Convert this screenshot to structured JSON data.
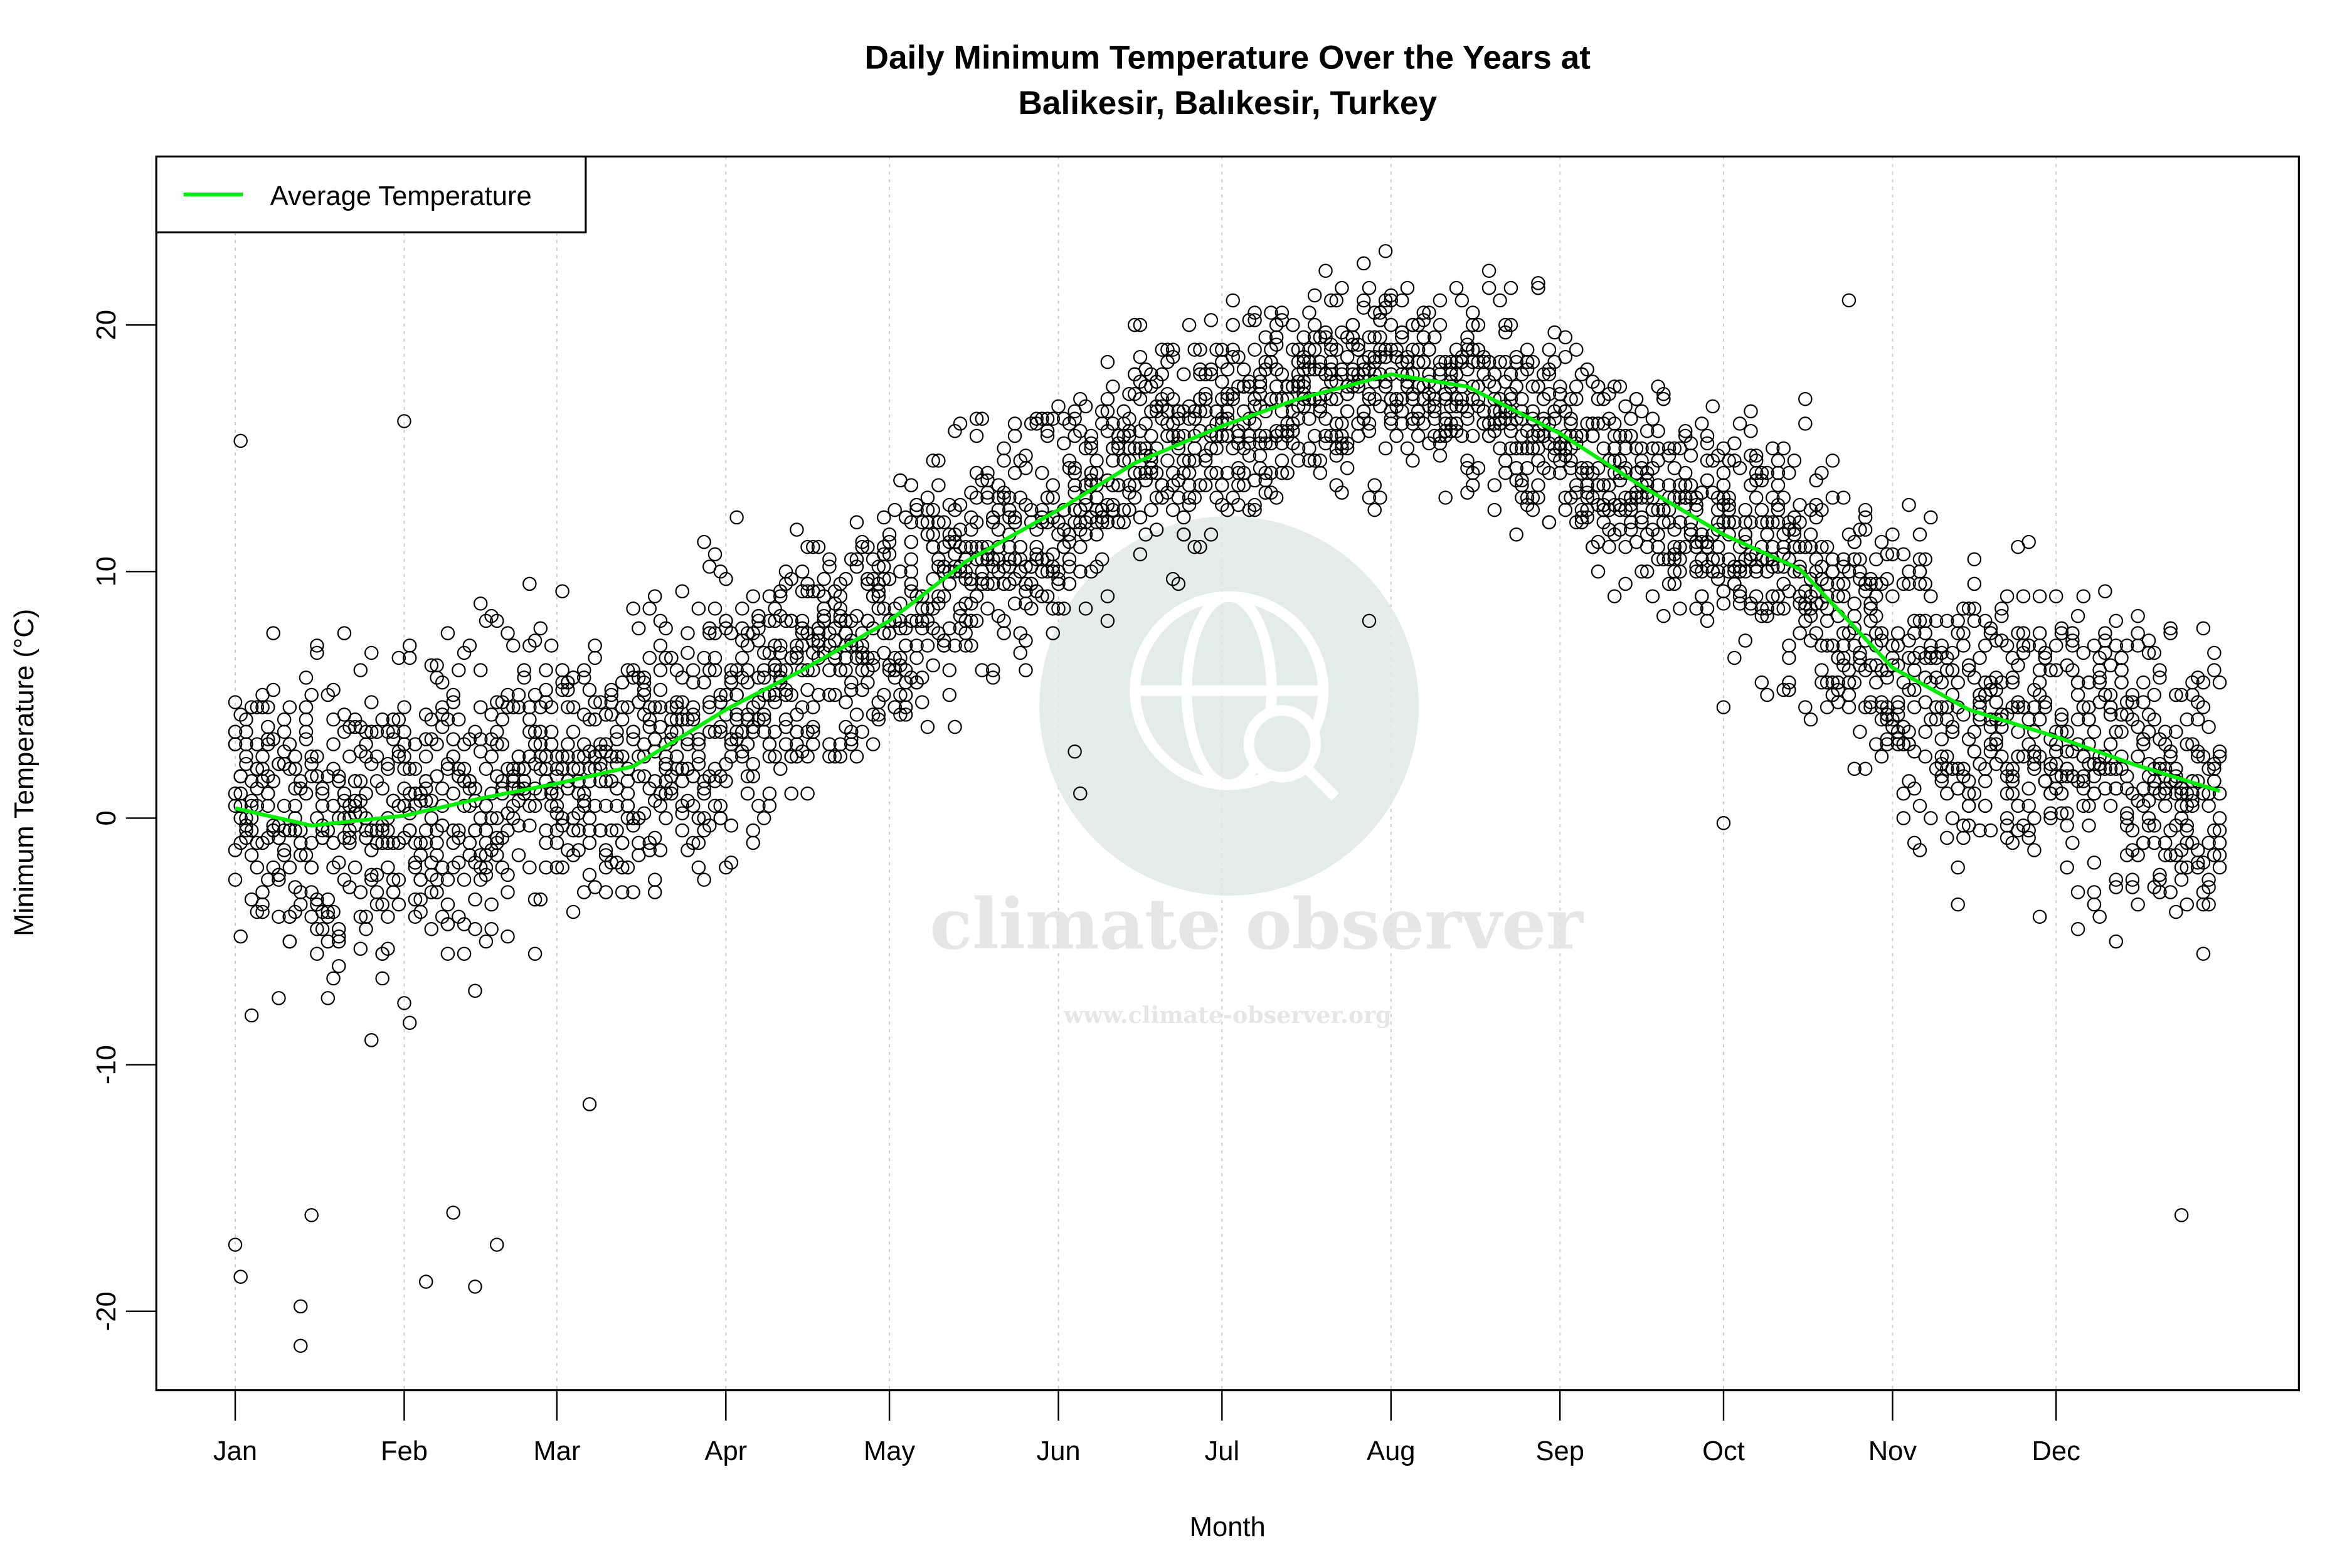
{
  "chart_data": {
    "type": "scatter",
    "title": "Daily Minimum Temperature Over the Years at",
    "subtitle": "Balikesir, Balıkesir, Turkey",
    "xlabel": "Month",
    "ylabel": "Minimum Temperature (°C)",
    "x_tick_labels": [
      "Jan",
      "Feb",
      "Mar",
      "Apr",
      "May",
      "Jun",
      "Jul",
      "Aug",
      "Sep",
      "Oct",
      "Nov",
      "Dec"
    ],
    "x_tick_days": [
      1,
      32,
      60,
      91,
      121,
      152,
      182,
      213,
      244,
      274,
      305,
      335
    ],
    "y_ticks": [
      -20,
      -10,
      0,
      10,
      20
    ],
    "xlim_day": [
      1,
      365
    ],
    "ylim": [
      -23.5,
      26.5
    ],
    "grid": "vertical dotted at month ticks",
    "legend": {
      "position": "top-left",
      "entries": [
        {
          "label": "Average Temperature",
          "color": "#00ee00"
        }
      ]
    },
    "average_series": {
      "name": "Average Temperature",
      "color": "#00ee00",
      "day": [
        1,
        15,
        32,
        46,
        60,
        74,
        91,
        105,
        121,
        135,
        152,
        166,
        182,
        196,
        213,
        227,
        244,
        258,
        274,
        288,
        305,
        319,
        335,
        349,
        365
      ],
      "value": [
        0.4,
        -0.3,
        0.1,
        0.8,
        1.4,
        2.1,
        4.4,
        6.0,
        8.0,
        10.4,
        12.5,
        14.4,
        15.9,
        17.0,
        18.0,
        17.5,
        15.6,
        13.6,
        11.5,
        10.1,
        6.1,
        4.4,
        3.3,
        2.2,
        1.1
      ]
    },
    "daily_points_band": {
      "description_month": [
        "Jan",
        "Feb",
        "Mar",
        "Apr",
        "May",
        "Jun",
        "Jul",
        "Aug",
        "Sep",
        "Oct",
        "Nov",
        "Dec"
      ],
      "low": [
        -9,
        -10,
        -7,
        -4,
        0,
        5,
        9,
        11,
        8,
        2,
        -5,
        -7
      ],
      "high": [
        12,
        12,
        11,
        13,
        16,
        20,
        23,
        24,
        22,
        19,
        16,
        13
      ]
    },
    "outliers": [
      {
        "day": 1,
        "value": -17.3
      },
      {
        "day": 2,
        "value": -18.6
      },
      {
        "day": 2,
        "value": 15.3
      },
      {
        "day": 13,
        "value": -19.8
      },
      {
        "day": 13,
        "value": -21.4
      },
      {
        "day": 15,
        "value": -16.1
      },
      {
        "day": 32,
        "value": 16.1
      },
      {
        "day": 36,
        "value": -18.8
      },
      {
        "day": 45,
        "value": -19.0
      },
      {
        "day": 49,
        "value": -17.3
      },
      {
        "day": 41,
        "value": -16.0
      },
      {
        "day": 66,
        "value": -11.6
      },
      {
        "day": 156,
        "value": 1.0
      },
      {
        "day": 155,
        "value": 2.7
      },
      {
        "day": 209,
        "value": 8.0
      },
      {
        "day": 274,
        "value": -0.2
      },
      {
        "day": 297,
        "value": 21.0
      },
      {
        "day": 358,
        "value": -16.1
      }
    ],
    "point_marker": "open circle",
    "colors": {
      "points": "#000000",
      "average": "#00ee00",
      "grid": "#cccccc"
    }
  },
  "watermark": {
    "name": "climate observer",
    "url": "www.climate-observer.org",
    "color": "#d9e8df"
  }
}
